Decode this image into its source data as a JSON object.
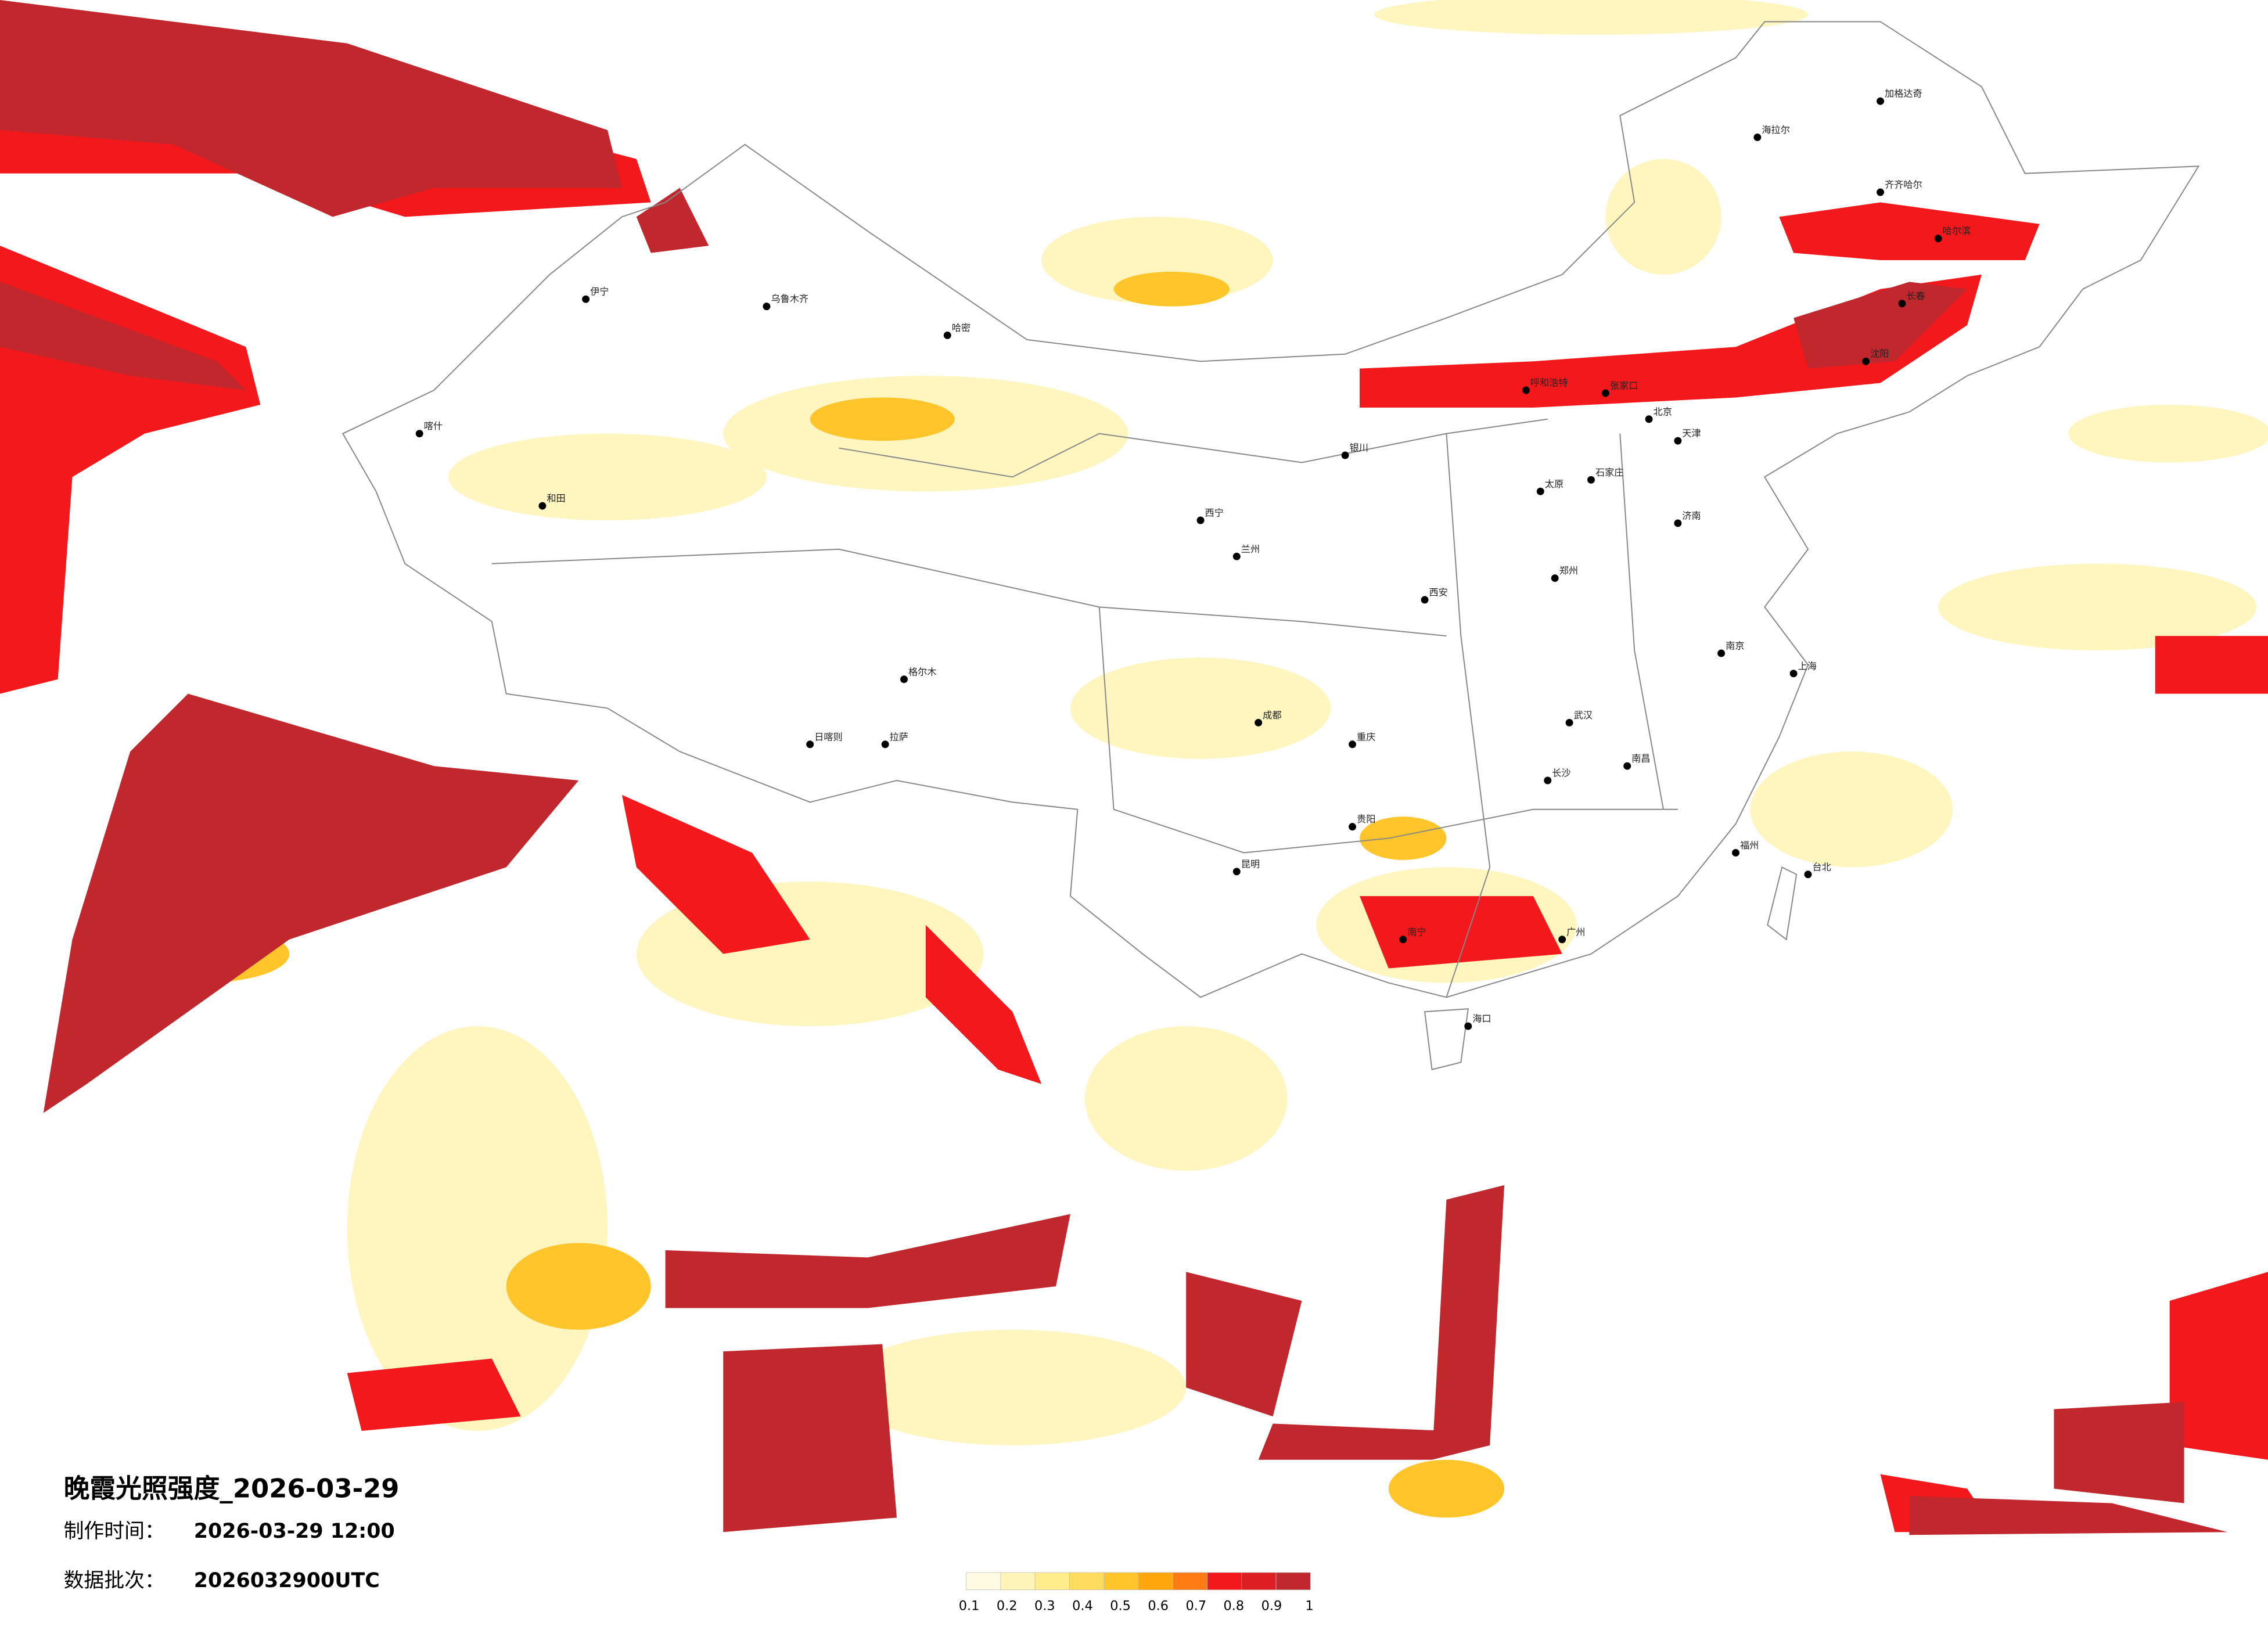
{
  "title": "晚霞光照强度_2026-03-29",
  "made_label": "制作时间：",
  "made_time": "2026-03-29 12:00",
  "batch_label": "数据批次：",
  "batch": "2026032900UTC",
  "legend": {
    "colors": [
      "#fffbe3",
      "#fff4b8",
      "#ffec8a",
      "#ffdc5e",
      "#ffc52b",
      "#ffa60d",
      "#ff7b14",
      "#f2181b",
      "#dd1e22",
      "#c0282d"
    ],
    "ticks": [
      0.1,
      0.2,
      0.3,
      0.4,
      0.5,
      0.6,
      0.7,
      0.8,
      0.9,
      1
    ]
  },
  "cities": [
    "乌鲁木齐",
    "哈密",
    "伊宁",
    "喀什",
    "和田",
    "格尔木",
    "拉萨",
    "日喀则",
    "西宁",
    "兰州",
    "银川",
    "呼和浩特",
    "张家口",
    "北京",
    "天津",
    "石家庄",
    "太原",
    "济南",
    "郑州",
    "西安",
    "成都",
    "重庆",
    "贵阳",
    "昆明",
    "南宁",
    "广州",
    "长沙",
    "武汉",
    "南昌",
    "南京",
    "上海",
    "福州",
    "台北",
    "海口",
    "沈阳",
    "长春",
    "哈尔滨",
    "齐齐哈尔",
    "海拉尔",
    "加格达奇"
  ]
}
